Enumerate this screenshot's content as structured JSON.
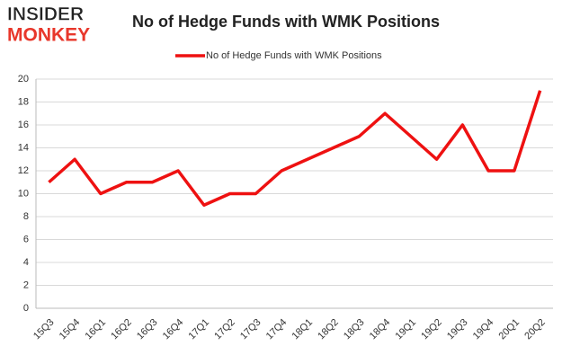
{
  "logo": {
    "line1": "INSIDER",
    "line2": "MONKEY"
  },
  "chart_data": {
    "type": "line",
    "title": "No of Hedge Funds with WMK Positions",
    "categories": [
      "15Q3",
      "15Q4",
      "16Q1",
      "16Q2",
      "16Q3",
      "16Q4",
      "17Q1",
      "17Q2",
      "17Q3",
      "17Q4",
      "18Q1",
      "18Q2",
      "18Q3",
      "18Q4",
      "19Q1",
      "19Q2",
      "19Q3",
      "19Q4",
      "20Q1",
      "20Q2"
    ],
    "series": [
      {
        "name": "No of Hedge Funds with WMK Positions",
        "color": "#ee1111",
        "values": [
          11,
          13,
          10,
          11,
          11,
          12,
          9,
          10,
          10,
          12,
          13,
          14,
          15,
          17,
          15,
          13,
          16,
          12,
          12,
          19
        ]
      }
    ],
    "ylim": [
      0,
      20
    ],
    "yticks": [
      0,
      2,
      4,
      6,
      8,
      10,
      12,
      14,
      16,
      18,
      20
    ],
    "grid": true,
    "legend": "top"
  }
}
